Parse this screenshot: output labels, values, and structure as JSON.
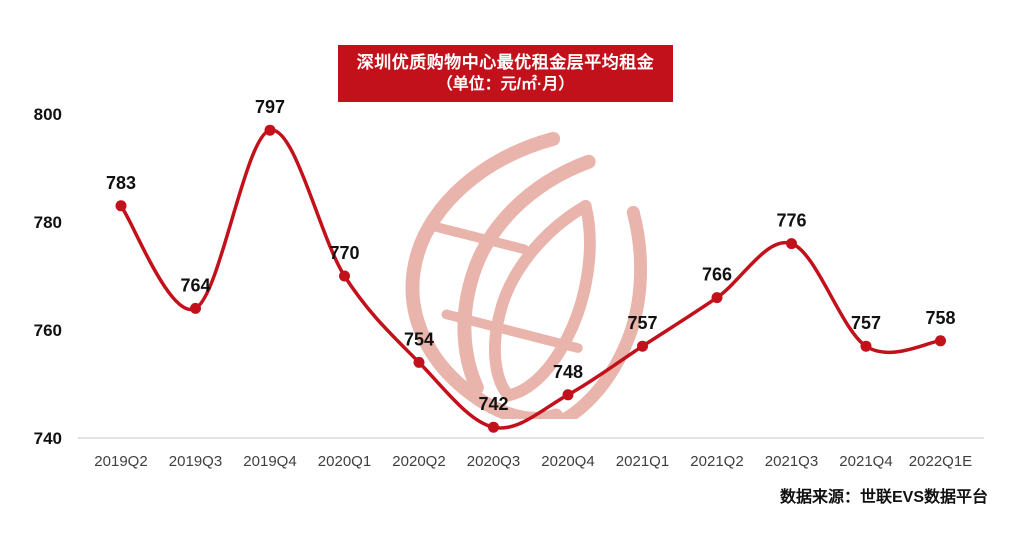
{
  "header": {
    "title": "深圳优质购物中心最优租金层平均租金",
    "unit_label": "（单位：元/㎡·月）"
  },
  "footer": {
    "source": "数据来源：世联EVS数据平台"
  },
  "colors": {
    "accent_red": "#c3111c",
    "watermark_pink": "#e9b4ac",
    "axis_line_gray": "#d9d9d9",
    "x_tick_gray": "#3f3f3f",
    "label_black": "#111111"
  },
  "chart_data": {
    "type": "line",
    "title": "深圳优质购物中心最优租金层平均租金（单位：元/㎡·月）",
    "categories": [
      "2019Q2",
      "2019Q3",
      "2019Q4",
      "2020Q1",
      "2020Q2",
      "2020Q3",
      "2020Q4",
      "2021Q1",
      "2021Q2",
      "2021Q3",
      "2021Q4",
      "2022Q1E"
    ],
    "values": [
      783,
      764,
      797,
      770,
      754,
      742,
      748,
      757,
      766,
      776,
      757,
      758
    ],
    "xlabel": "",
    "ylabel": "",
    "ylim": [
      740,
      805
    ],
    "yticks": [
      740,
      760,
      780,
      800
    ],
    "grid": false,
    "legend_position": "none",
    "smooth": true,
    "marker": "circle",
    "data_labels": true,
    "watermark": "world-union-globe-logo",
    "source": "数据来源：世联EVS数据平台"
  }
}
